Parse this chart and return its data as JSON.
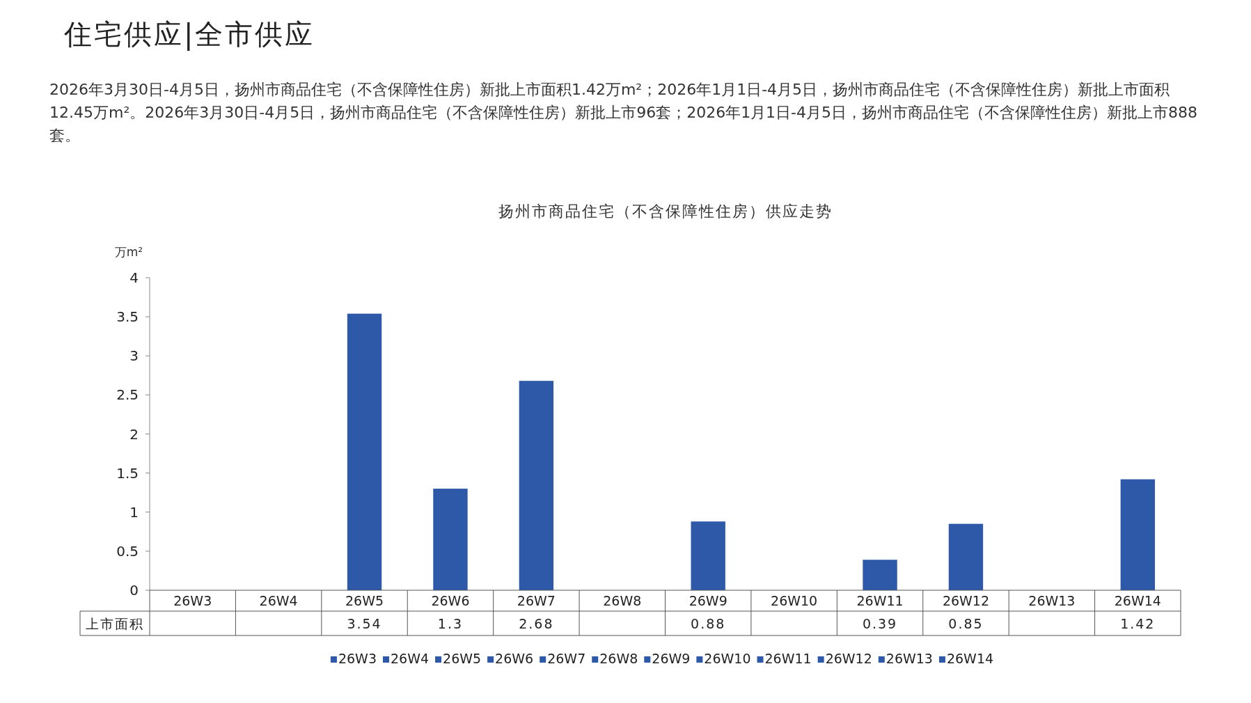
{
  "chart_data": {
    "type": "bar",
    "title": "扬州市商品住宅（不含保障性住房）供应走势",
    "ylabel": "万m²",
    "annotations": [
      "住宅供应|全市供应",
      "2026年3月30日-4月5日，扬州市商品住宅（不含保障性住房）新批上市面积1.42万m²；2026年1月1日-4月5日，扬州市商品住宅（不含保障性住房）新批上市面积12.45万m²。2026年3月30日-4月5日，扬州市商品住宅（不含保障性住房）新批上市96套；2026年1月1日-4月5日，扬州市商品住宅（不含保障性住房）新批上市888套。"
    ],
    "categories": [
      "26W3",
      "26W4",
      "26W5",
      "26W6",
      "26W7",
      "26W8",
      "26W9",
      "26W10",
      "26W11",
      "26W12",
      "26W13",
      "26W14"
    ],
    "series": [
      {
        "name": "上市面积",
        "color": "#2e59a8",
        "values": [
          null,
          null,
          3.54,
          1.3,
          2.68,
          null,
          0.88,
          null,
          0.39,
          0.85,
          null,
          1.42
        ]
      }
    ],
    "ylim": [
      0,
      4
    ],
    "yticks": [
      0,
      0.5,
      1,
      1.5,
      2,
      2.5,
      3,
      3.5,
      4
    ],
    "data_labels": true,
    "legend": "bottom",
    "grid": false
  }
}
